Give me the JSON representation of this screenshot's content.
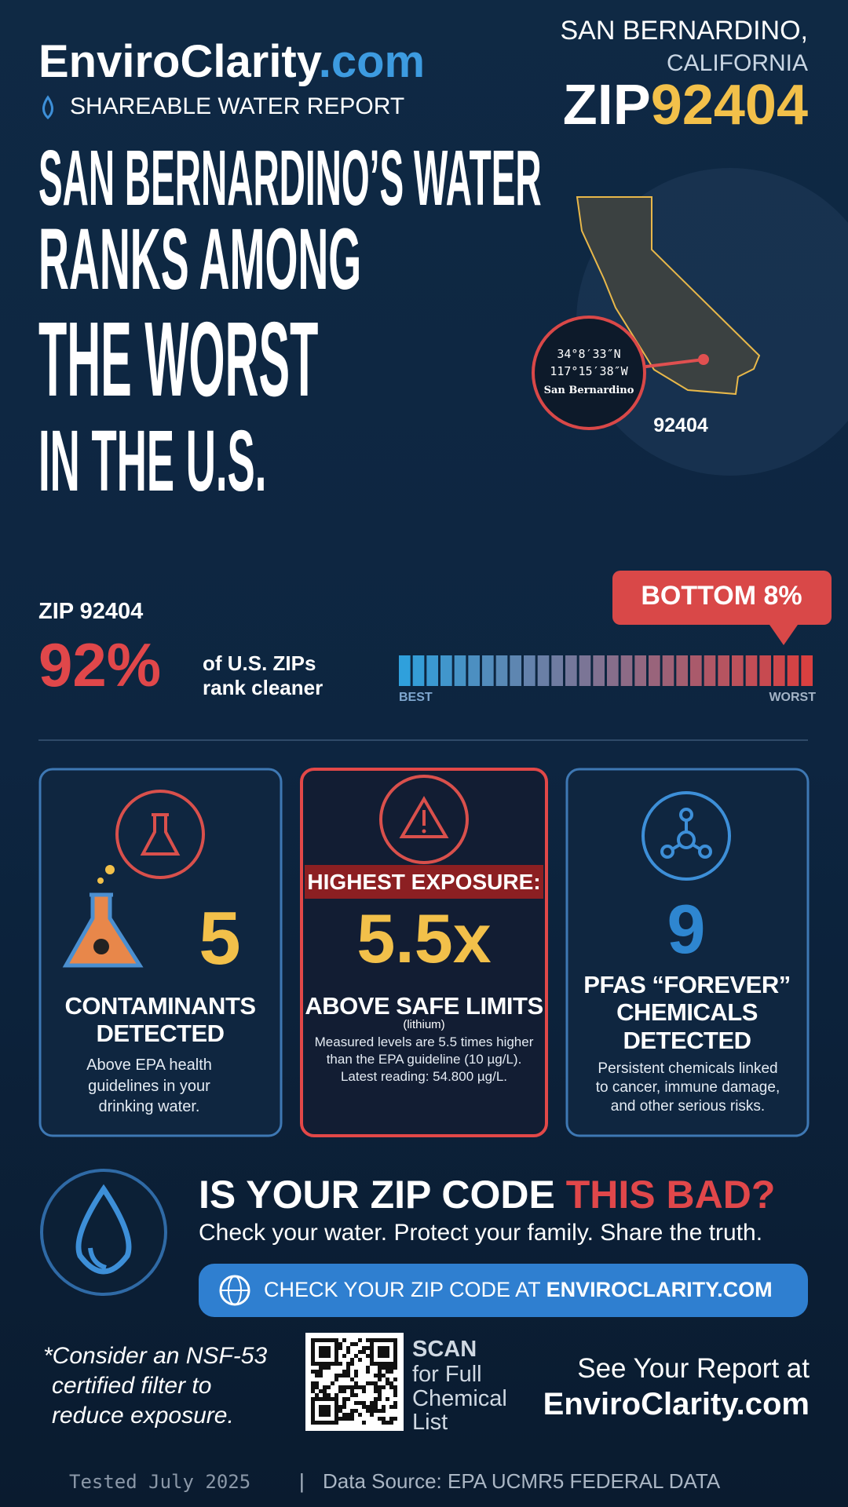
{
  "header": {
    "brand_main": "EnviroClarity",
    "brand_tld": ".com",
    "subtitle": "SHAREABLE WATER REPORT",
    "city": "SAN BERNARDINO,",
    "state": "CALIFORNIA",
    "zip_prefix": "ZIP",
    "zip": "92404"
  },
  "headline": {
    "lines": [
      "SAN BERNARDINO’S WATER",
      "RANKS AMONG",
      "THE WORST",
      "IN THE U.S."
    ]
  },
  "map": {
    "lat": "34°8′33″N",
    "lon": "117°15′38″W",
    "place": "San Bernardino",
    "zip": "92404"
  },
  "ranking": {
    "zip_label": "ZIP 92404",
    "percent": "92%",
    "text_lines": [
      "of U.S. ZIPs",
      "rank cleaner"
    ],
    "badge": "BOTTOM 8%",
    "scale_low": "BEST",
    "scale_high": "WORST"
  },
  "cards": [
    {
      "number": "5",
      "title_lines": [
        "CONTAMINANTS",
        "DETECTED"
      ],
      "description_lines": [
        "Above EPA health",
        "guidelines in your",
        "drinking water."
      ]
    },
    {
      "banner": "HIGHEST EXPOSURE:",
      "number": "5.5x",
      "title_lines": [
        "ABOVE SAFE LIMITS"
      ],
      "note": "(lithium)",
      "description_lines": [
        "Measured levels are 5.5 times higher",
        "than the EPA guideline (10 µg/L).",
        "Latest reading: 54.800 µg/L."
      ]
    },
    {
      "number": "9",
      "title_lines": [
        "PFAS “FOREVER”",
        "CHEMICALS",
        "DETECTED"
      ],
      "description_lines": [
        "Persistent chemicals linked",
        "to cancer, immune damage,",
        "and other serious risks."
      ]
    }
  ],
  "cta": {
    "question_main": "IS YOUR ZIP CODE",
    "question_highlight": "THIS BAD?",
    "tagline": "Check your water. Protect your family. Share the truth.",
    "button_prefix": "CHECK YOUR ZIP CODE AT",
    "button_site": "ENVIROCLARITY.COM"
  },
  "footer": {
    "filter_note_lines": [
      "*Consider an NSF-53",
      "certified filter to",
      "reduce exposure."
    ],
    "scan_lines": [
      "SCAN",
      "for Full",
      "Chemical",
      "List"
    ],
    "report_lines": [
      "See Your Report at",
      "EnviroClarity.com"
    ],
    "tested": "Tested July 2025",
    "separator": "|",
    "source": "Data Source: EPA UCMR5 FEDERAL DATA"
  }
}
